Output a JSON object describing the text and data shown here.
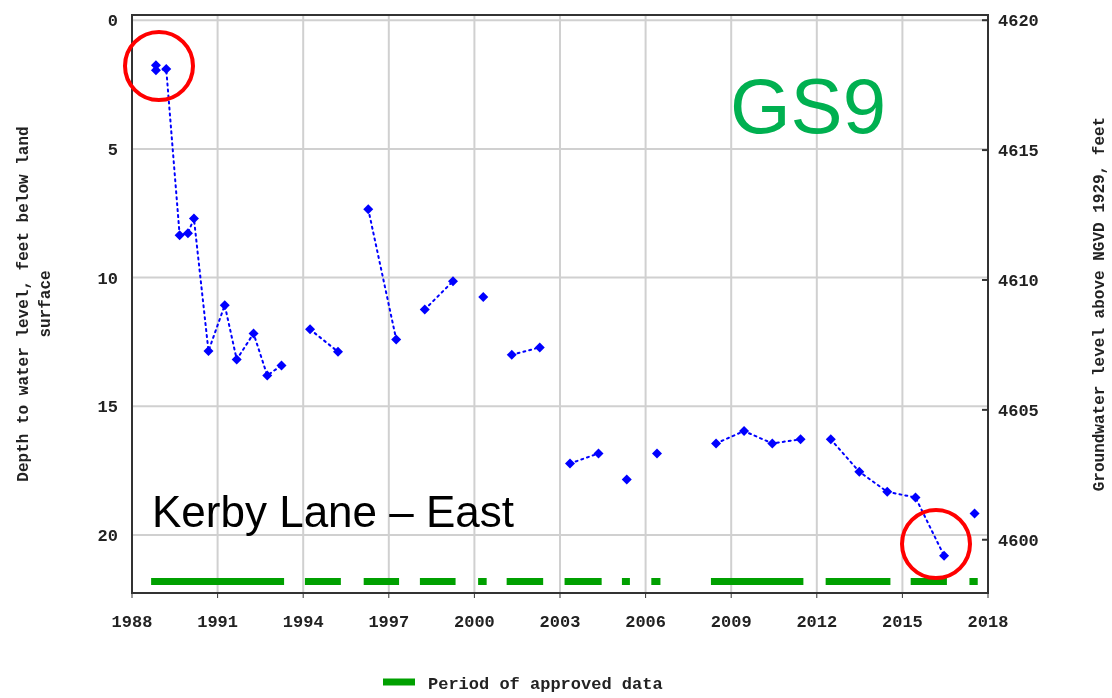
{
  "chart_data": {
    "type": "line",
    "ylabel": "Depth to water level, feet below land surface",
    "y2label": "Groundwater level above NGVD 1929, feet",
    "xlim": [
      1988,
      2018
    ],
    "xticks": [
      1988,
      1991,
      1994,
      1997,
      2000,
      2003,
      2006,
      2009,
      2012,
      2015,
      2018
    ],
    "ylim": [
      22.25,
      -0.2
    ],
    "yticks": [
      0,
      5,
      10,
      15,
      20
    ],
    "y2lim": [
      4597.95,
      4620.2
    ],
    "y2ticks": [
      4600,
      4605,
      4610,
      4615,
      4620
    ],
    "grid": true,
    "marker": "diamond",
    "line_style": "dotted",
    "legend": "bottom",
    "annotations": [
      "GS9",
      "Kerby Lane – East"
    ],
    "series": [
      {
        "color": "#0000ff",
        "x": [
          1988.84,
          1988.84,
          1989.2,
          1989.67,
          1989.96,
          1990.17,
          1990.68,
          1991.25,
          1991.67,
          1992.26,
          1992.74,
          1993.24
        ],
        "values": [
          1.75,
          1.95,
          1.9,
          8.35,
          8.28,
          7.7,
          12.85,
          11.07,
          13.18,
          12.17,
          13.8,
          13.41
        ]
      },
      {
        "color": "#0000ff",
        "x": [
          1994.24,
          1995.22
        ],
        "values": [
          12.01,
          12.88
        ]
      },
      {
        "color": "#0000ff",
        "x": [
          1996.28,
          1997.26
        ],
        "values": [
          7.34,
          12.4
        ]
      },
      {
        "color": "#0000ff",
        "x": [
          1998.26,
          1999.25
        ],
        "values": [
          11.24,
          10.14
        ]
      },
      {
        "color": "#0000ff",
        "x": [
          2000.31
        ],
        "values": [
          10.75
        ]
      },
      {
        "color": "#0000ff",
        "x": [
          2001.31,
          2002.29
        ],
        "values": [
          13.0,
          12.71
        ]
      },
      {
        "color": "#0000ff",
        "x": [
          2003.35,
          2004.35
        ],
        "values": [
          17.22,
          16.83
        ]
      },
      {
        "color": "#0000ff",
        "x": [
          2005.34
        ],
        "values": [
          17.84
        ]
      },
      {
        "color": "#0000ff",
        "x": [
          2006.4
        ],
        "values": [
          16.83
        ]
      },
      {
        "color": "#0000ff",
        "x": [
          2008.47,
          2009.45,
          2010.44,
          2011.43
        ],
        "values": [
          16.44,
          15.96,
          16.44,
          16.28
        ]
      },
      {
        "color": "#0000ff",
        "x": [
          2012.49,
          2013.49,
          2014.47,
          2015.46,
          2016.46
        ],
        "values": [
          16.28,
          17.54,
          18.32,
          18.54,
          20.8
        ]
      },
      {
        "color": "#0000ff",
        "x": [
          2017.53
        ],
        "values": [
          19.16
        ]
      },
      {
        "type": "line",
        "name": "Period of approved data",
        "color": "#00a000",
        "line_style": "solid",
        "marker": "none",
        "x": [
          1988.67,
          1993.33,
          1993.7,
          1994.06,
          1995.32,
          1995.7,
          1996.12,
          1997.36,
          1997.7,
          1998.09,
          1999.34,
          1999.7,
          2000.13,
          2000.43,
          2000.8,
          2001.13,
          2002.41,
          2002.8,
          2003.16,
          2004.46,
          2004.8,
          2005.17,
          2005.45,
          2005.8,
          2006.2,
          2006.52,
          2007.4,
          2008.29,
          2011.53,
          2011.9,
          2012.31,
          2014.58,
          2014.9,
          2015.29,
          2016.56,
          2016.9,
          2017.35,
          2017.64
        ],
        "values": [
          21.8,
          21.8,
          null,
          21.8,
          21.8,
          null,
          21.8,
          21.8,
          null,
          21.8,
          21.8,
          null,
          21.8,
          21.8,
          null,
          21.8,
          21.8,
          null,
          21.8,
          21.8,
          null,
          21.8,
          21.8,
          null,
          21.8,
          21.8,
          null,
          21.8,
          21.8,
          null,
          21.8,
          21.8,
          null,
          21.8,
          21.8,
          null,
          21.8,
          21.8
        ]
      }
    ]
  }
}
